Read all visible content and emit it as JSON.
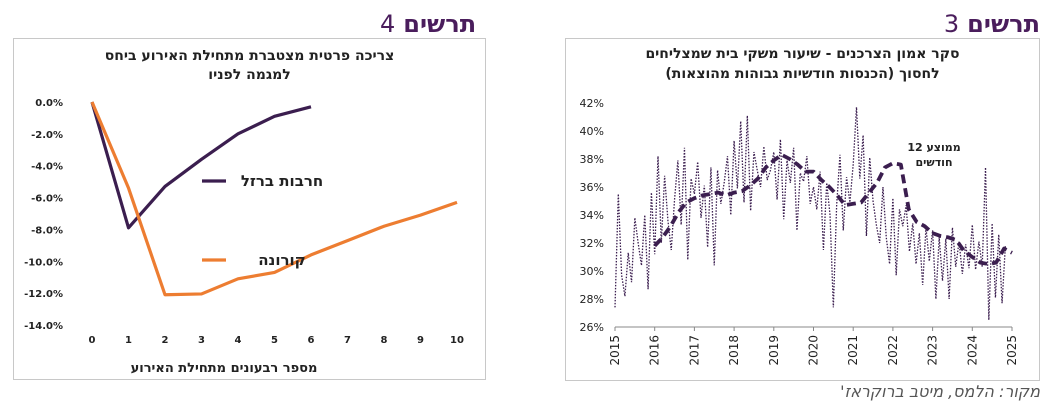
{
  "headings": {
    "right": {
      "word": "תרשים",
      "num": "3"
    },
    "left": {
      "word": "תרשים",
      "num": "4"
    }
  },
  "source": "מקור: הלמס, מיטב ברוקראז'",
  "colors": {
    "accent": "#4a1d5c",
    "orange": "#ed7d31",
    "purple": "#3b1e4f"
  },
  "chart_data": [
    {
      "type": "line",
      "title_lines": [
        "צריכה פרטית מצטברת מתחילת האירוע ביחס",
        "למגמה לפניו"
      ],
      "xlabel": "מספר רבעונים מתחילת האירוע",
      "ylabel": "",
      "ylim": [
        -14,
        0
      ],
      "xlim": [
        0,
        10
      ],
      "x_ticks": [
        "0",
        "1",
        "2",
        "3",
        "4",
        "5",
        "6",
        "7",
        "8",
        "9",
        "10"
      ],
      "y_ticks": [
        "0.0%",
        "-2.0%",
        "-4.0%",
        "-6.0%",
        "-8.0%",
        "-10.0%",
        "-12.0%",
        "-14.0%"
      ],
      "series": [
        {
          "name": "חרבות ברזל",
          "color": "#3b1e4f",
          "x": [
            0,
            1,
            2,
            3,
            4,
            5,
            6
          ],
          "values": [
            0,
            -7.9,
            -5.3,
            -3.6,
            -2.0,
            -0.9,
            -0.3
          ]
        },
        {
          "name": "קורונה",
          "color": "#ed7d31",
          "x": [
            0,
            1,
            2,
            3,
            4,
            5,
            6,
            7,
            8,
            9,
            10
          ],
          "values": [
            0,
            -5.4,
            -12.1,
            -12.05,
            -11.1,
            -10.7,
            -9.6,
            -8.7,
            -7.8,
            -7.1,
            -6.3
          ]
        }
      ],
      "grid": false,
      "legend": "inline-labels"
    },
    {
      "type": "line",
      "title_lines": [
        "סקר אמון הצרכנים - שיעור משקי בית שמצליחים",
        "לחסוך (הכנסות חודשיות גבוהות מהוצאות)"
      ],
      "xlabel": "",
      "ylabel": "",
      "ylim": [
        26,
        42
      ],
      "xlim": [
        2015,
        2025
      ],
      "x_ticks": [
        "2015",
        "2016",
        "2017",
        "2018",
        "2019",
        "2020",
        "2021",
        "2022",
        "2023",
        "2024",
        "2025"
      ],
      "y_ticks": [
        "42%",
        "40%",
        "38%",
        "36%",
        "34%",
        "32%",
        "30%",
        "28%",
        "26%"
      ],
      "annotation": [
        "ממוצע 12",
        "חודשים"
      ],
      "series": [
        {
          "name": "",
          "style": "dotted",
          "color": "#3b1e4f",
          "x_start": 2015.0,
          "x_step": 0.08333,
          "values": [
            27.4,
            35.5,
            29.7,
            28.2,
            31.3,
            29.2,
            33.8,
            32.0,
            30.4,
            34.0,
            28.7,
            35.6,
            31.2,
            38.2,
            32.0,
            36.8,
            33.6,
            31.5,
            35.1,
            37.9,
            33.3,
            38.8,
            30.8,
            36.6,
            35.5,
            37.8,
            33.8,
            36.1,
            31.7,
            37.4,
            30.4,
            37.2,
            34.8,
            36.3,
            38.2,
            34.0,
            39.3,
            35.9,
            40.7,
            34.9,
            41.1,
            34.3,
            38.5,
            37.2,
            36.0,
            38.9,
            36.5,
            37.2,
            38.5,
            35.1,
            39.4,
            33.7,
            37.9,
            36.3,
            38.8,
            32.9,
            37.0,
            36.4,
            38.2,
            34.8,
            36.0,
            34.4,
            37.1,
            31.5,
            36.3,
            34.0,
            27.4,
            34.7,
            38.3,
            32.9,
            36.7,
            34.9,
            37.6,
            41.7,
            36.6,
            39.7,
            32.5,
            38.1,
            35.0,
            33.3,
            32.0,
            36.0,
            32.4,
            30.5,
            35.2,
            29.7,
            34.4,
            33.2,
            34.7,
            31.4,
            33.4,
            30.5,
            32.7,
            29.0,
            33.1,
            30.7,
            32.9,
            28.0,
            32.4,
            29.3,
            32.3,
            28.0,
            33.1,
            30.3,
            32.1,
            29.8,
            31.9,
            30.2,
            33.3,
            30.1,
            32.1,
            30.3,
            37.4,
            26.5,
            33.4,
            28.1,
            32.6,
            27.7,
            31.8
          ]
        },
        {
          "name": "ממוצע 12 חודשים",
          "style": "dashed",
          "color": "#3b1e4f",
          "x": [
            2016.0,
            2016.2,
            2016.4,
            2016.6,
            2016.8,
            2017.0,
            2017.2,
            2017.4,
            2017.6,
            2017.8,
            2018.0,
            2018.2,
            2018.4,
            2018.6,
            2018.8,
            2019.0,
            2019.2,
            2019.4,
            2019.6,
            2019.8,
            2020.0,
            2020.2,
            2020.4,
            2020.6,
            2020.8,
            2021.0,
            2021.2,
            2021.4,
            2021.6,
            2021.8,
            2022.0,
            2022.2,
            2022.4,
            2022.6,
            2022.8,
            2023.0,
            2023.2,
            2023.4,
            2023.6,
            2023.8,
            2024.0,
            2024.2,
            2024.4,
            2024.6,
            2024.8,
            2025.0
          ],
          "values": [
            31.8,
            32.4,
            33.2,
            34.2,
            34.9,
            35.2,
            35.4,
            35.5,
            35.6,
            35.4,
            35.6,
            35.7,
            36.1,
            36.6,
            37.4,
            37.9,
            38.3,
            38.0,
            37.6,
            37.1,
            37.1,
            36.5,
            36.0,
            35.4,
            34.7,
            34.8,
            34.9,
            35.6,
            36.3,
            37.4,
            37.7,
            37.6,
            34.4,
            33.5,
            33.2,
            32.7,
            32.5,
            32.4,
            32.2,
            31.4,
            31.0,
            30.6,
            30.5,
            30.6,
            31.6,
            31.3
          ]
        }
      ],
      "grid": false,
      "legend": "annotation"
    }
  ]
}
